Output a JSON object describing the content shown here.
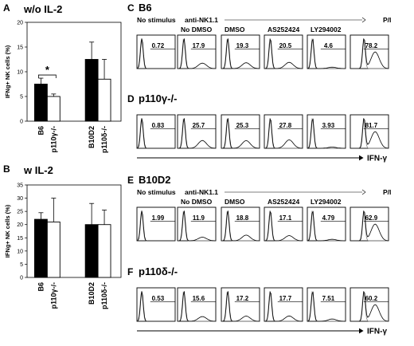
{
  "panels": [
    {
      "letter": "A",
      "title": "w/o IL-2",
      "significance": "*"
    },
    {
      "letter": "B",
      "title": "w IL-2"
    }
  ],
  "bar_ylabel": "IFNg+ NK cells (%)",
  "chart_data": [
    {
      "type": "bar",
      "title": "w/o IL-2",
      "ylabel": "IFNg+ NK cells (%)",
      "ylim": [
        0,
        20
      ],
      "yticks": [
        "0",
        "5",
        "10",
        "15",
        "20"
      ],
      "categories": [
        "B6",
        "p110γ-/-",
        "B10D2",
        "p110δ-/-"
      ],
      "values": [
        7.5,
        5,
        12.5,
        8.5
      ],
      "errors": [
        1.2,
        0.5,
        3.5,
        4
      ],
      "fills": [
        "#000000",
        "#ffffff",
        "#000000",
        "#ffffff"
      ]
    },
    {
      "type": "bar",
      "title": "w IL-2",
      "ylabel": "IFNg+ NK cells (%)",
      "ylim": [
        0,
        35
      ],
      "yticks": [
        "0",
        "5",
        "10",
        "15",
        "20",
        "25",
        "30",
        "35"
      ],
      "categories": [
        "B6",
        "p110γ-/-",
        "B10D2",
        "p110δ-/-"
      ],
      "values": [
        22,
        21,
        20,
        20
      ],
      "errors": [
        2.5,
        9,
        8,
        5.5
      ],
      "fills": [
        "#000000",
        "#ffffff",
        "#000000",
        "#ffffff"
      ]
    }
  ],
  "flow_groups": [
    {
      "letter": "C",
      "label": "B6",
      "header": {
        "no_stimulus": "No stimulus",
        "anti": "anti-NK1.1",
        "pi": "P/I"
      },
      "conditions": [
        "",
        "No DMSO",
        "DMSO",
        "AS252424",
        "LY294002",
        ""
      ],
      "values": [
        "0.72",
        "17.9",
        "19.3",
        "20.5",
        "4.6",
        "78.2"
      ]
    },
    {
      "letter": "D",
      "label": "p110γ-/-",
      "values": [
        "0.83",
        "25.7",
        "25.3",
        "27.8",
        "3.93",
        "81.7"
      ],
      "axis_label": "IFN-γ"
    },
    {
      "letter": "E",
      "label": "B10D2",
      "header": {
        "no_stimulus": "No stimulus",
        "anti": "anti-NK1.1",
        "pi": "P/I"
      },
      "conditions": [
        "",
        "No DMSO",
        "DMSO",
        "AS252424",
        "LY294002",
        ""
      ],
      "values": [
        "1.99",
        "11.9",
        "18.8",
        "17.1",
        "4.79",
        "62.9"
      ]
    },
    {
      "letter": "F",
      "label": "p110δ-/-",
      "values": [
        "0.53",
        "15.6",
        "17.2",
        "17.7",
        "7.51",
        "60.2"
      ],
      "axis_label": "IFN-γ"
    }
  ]
}
